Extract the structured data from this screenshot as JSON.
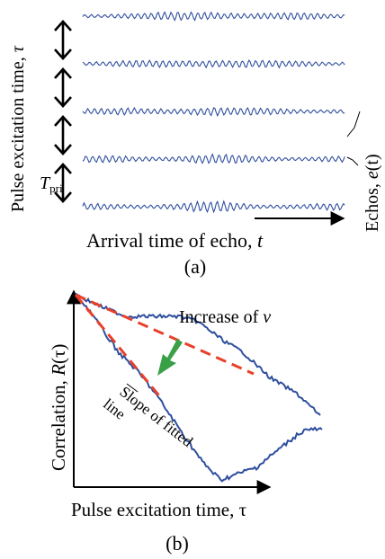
{
  "panel_a": {
    "y_axis_label": "Pulse excitation time, ",
    "y_axis_symbol": "τ",
    "x_axis_label": "Arrival time of echo, ",
    "x_axis_symbol": "t",
    "echo_label": "Echos, ",
    "echo_symbol": "e",
    "echo_symbol_arg": "(t)",
    "tpri_symbol": "T",
    "tpri_subscript": "pri",
    "caption": "(a)",
    "echo_trace_count": 5,
    "interval_arrow_count": 4
  },
  "panel_b": {
    "y_axis_label": "Correlation, ",
    "y_axis_symbol": "R",
    "y_axis_arg": "(τ)",
    "x_axis_label": "Pulse excitation time, τ",
    "increase_label": "Increase of ",
    "increase_symbol": "v",
    "slope_label_line1": "Slope of fitted",
    "slope_label_line2": "line",
    "caption": "(b)",
    "colors": {
      "curve": "#2f4f9e",
      "fit_line": "#e8402a",
      "arrow": "#3aa047",
      "axis": "#000000"
    }
  }
}
